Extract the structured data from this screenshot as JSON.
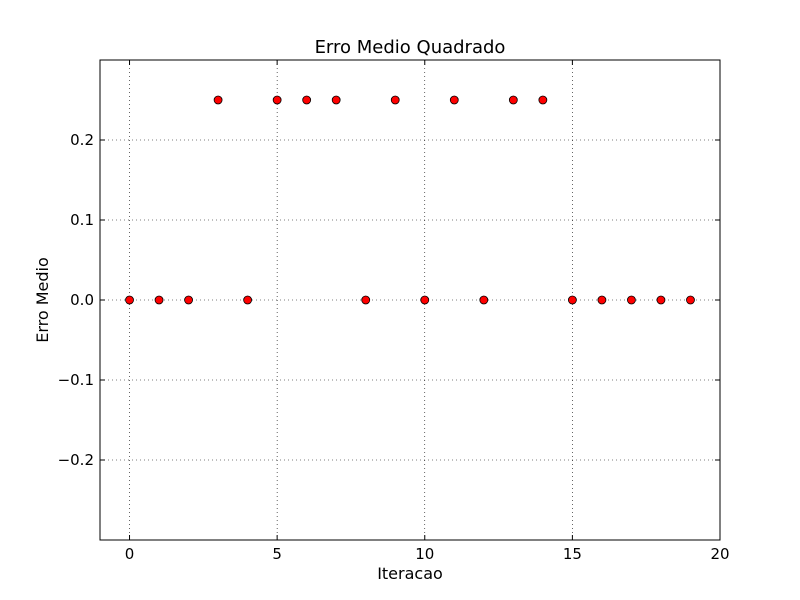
{
  "chart_data": {
    "type": "scatter",
    "title": "Erro Medio Quadrado",
    "xlabel": "Iteracao",
    "ylabel": "Erro Medio",
    "xlim": [
      -1,
      20
    ],
    "ylim": [
      -0.3,
      0.3
    ],
    "xticks": [
      0,
      5,
      10,
      15,
      20
    ],
    "yticks": [
      -0.2,
      -0.1,
      0.0,
      0.1,
      0.2
    ],
    "xtick_labels": [
      "0",
      "5",
      "10",
      "15",
      "20"
    ],
    "ytick_labels": [
      "−0.2",
      "−0.1",
      "0.0",
      "0.1",
      "0.2"
    ],
    "grid": true,
    "marker_color": "#ff0000",
    "marker_edge_color": "#000000",
    "series": [
      {
        "x": [
          0,
          1,
          2,
          3,
          4,
          5,
          6,
          7,
          8,
          9,
          10,
          11,
          12,
          13,
          14,
          15,
          16,
          17,
          18,
          19
        ],
        "values": [
          0,
          0,
          0,
          0.25,
          0,
          0.25,
          0.25,
          0.25,
          0,
          0.25,
          0,
          0.25,
          0,
          0.25,
          0.25,
          0,
          0,
          0,
          0,
          0
        ]
      }
    ]
  }
}
